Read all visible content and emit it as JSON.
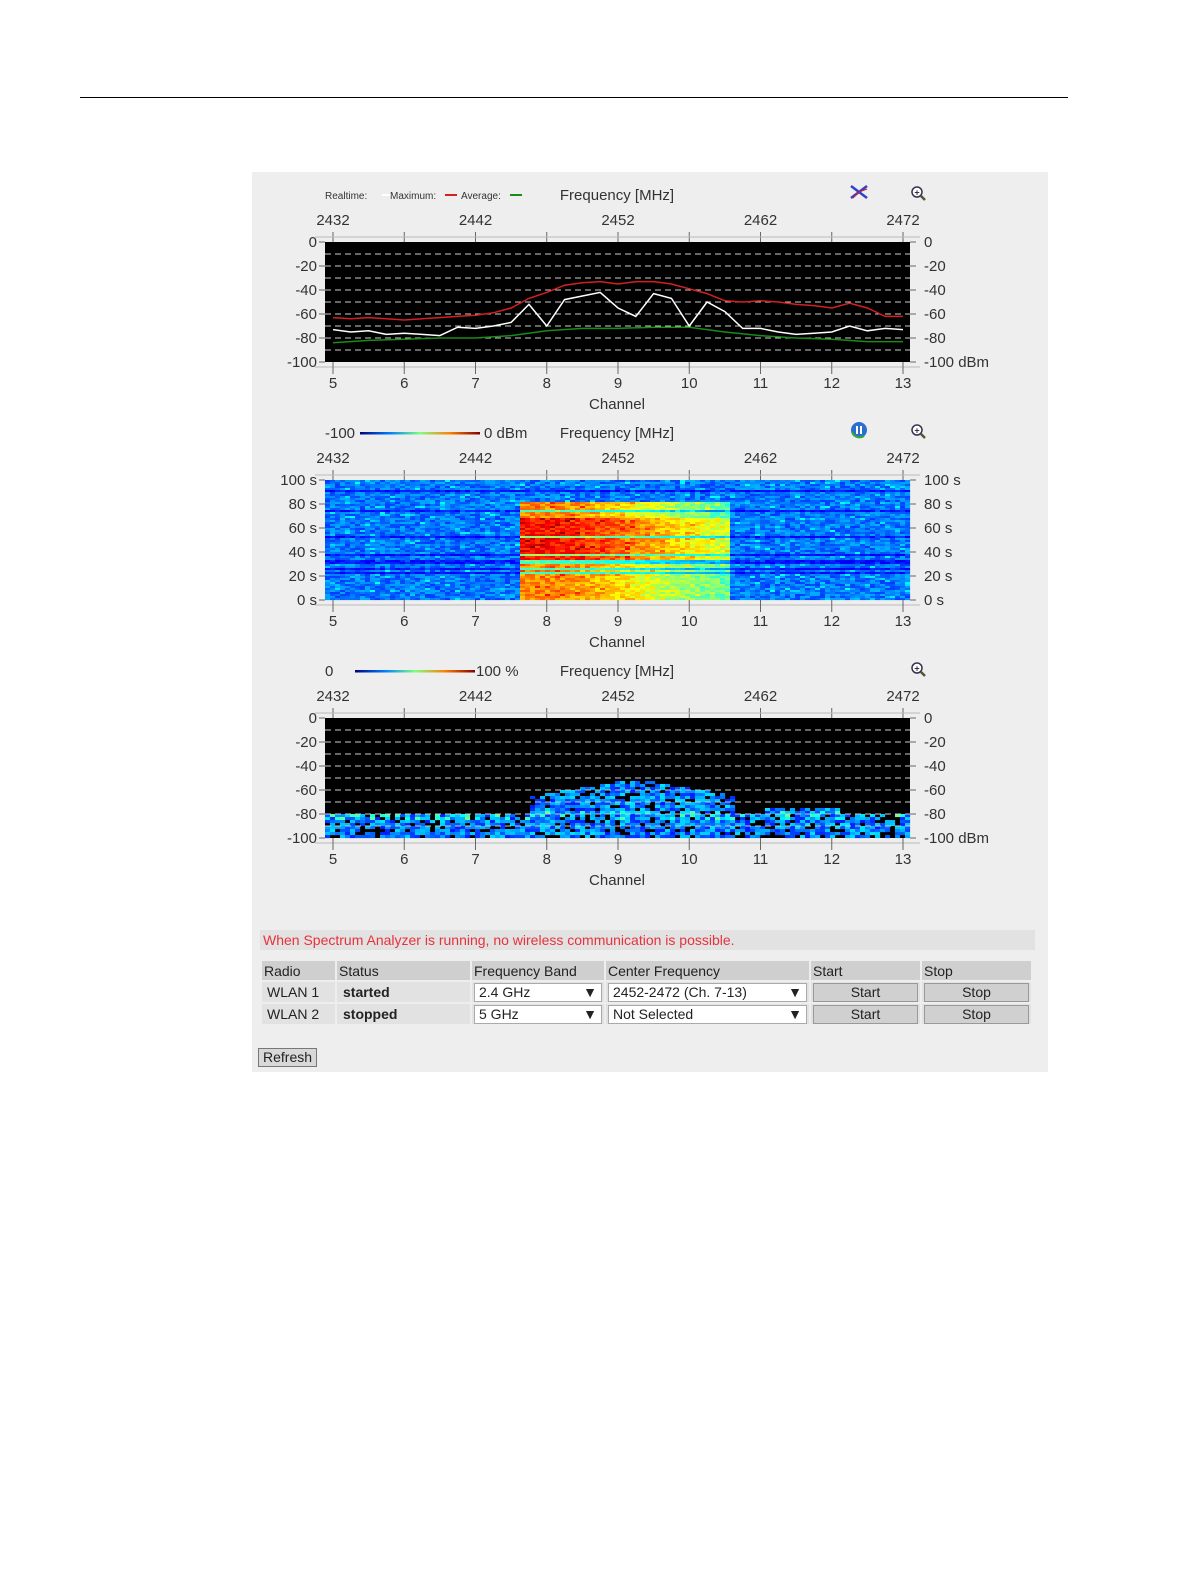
{
  "colors": {
    "max": "#d42020",
    "realtime": "#ffffff",
    "average": "#1a8a1a",
    "warning": "#e8323c",
    "plot_bg": "#000000",
    "panel_bg": "#eeeeee"
  },
  "chart_data": [
    {
      "type": "line",
      "title": "Frequency [MHz]",
      "xlabel": "Channel",
      "x_ticks": [
        "5",
        "6",
        "7",
        "8",
        "9",
        "10",
        "11",
        "12",
        "13"
      ],
      "x2_ticks": [
        "2432",
        "2442",
        "2452",
        "2462",
        "2472"
      ],
      "yticks_left": [
        "0",
        "-20",
        "-40",
        "-60",
        "-80",
        "-100"
      ],
      "yticks_right": [
        "0",
        "-20",
        "-40",
        "-60",
        "-80",
        "-100 dBm"
      ],
      "ylim": [
        -100,
        0
      ],
      "xlim": [
        5,
        13
      ],
      "grid": true,
      "legend": {
        "realtime": "Realtime:",
        "maximum": "Maximum:",
        "average": "Average:",
        "placement": "top-left"
      },
      "icons": [
        "reset-max-icon",
        "zoom-icon"
      ],
      "series": [
        {
          "name": "Realtime",
          "x": [
            5,
            5.25,
            5.5,
            5.75,
            6,
            6.25,
            6.5,
            6.75,
            7,
            7.25,
            7.5,
            7.75,
            8,
            8.25,
            8.5,
            8.75,
            9,
            9.25,
            9.5,
            9.75,
            10,
            10.25,
            10.5,
            10.75,
            11,
            11.25,
            11.5,
            11.75,
            12,
            12.25,
            12.5,
            12.75,
            13
          ],
          "values": [
            -73,
            -75,
            -74,
            -77,
            -76,
            -77,
            -78,
            -71,
            -72,
            -70,
            -67,
            -52,
            -70,
            -48,
            -45,
            -42,
            -55,
            -62,
            -43,
            -47,
            -70,
            -50,
            -58,
            -72,
            -72,
            -75,
            -77,
            -76,
            -75,
            -70,
            -74,
            -72,
            -73
          ]
        },
        {
          "name": "Maximum",
          "x": [
            5,
            5.25,
            5.5,
            5.75,
            6,
            6.25,
            6.5,
            6.75,
            7,
            7.25,
            7.5,
            7.75,
            8,
            8.25,
            8.5,
            8.75,
            9,
            9.25,
            9.5,
            9.75,
            10,
            10.25,
            10.5,
            10.75,
            11,
            11.25,
            11.5,
            11.75,
            12,
            12.25,
            12.5,
            12.75,
            13
          ],
          "values": [
            -63,
            -64,
            -63,
            -64,
            -65,
            -64,
            -63,
            -62,
            -61,
            -59,
            -55,
            -47,
            -42,
            -36,
            -34,
            -33,
            -35,
            -33,
            -33,
            -35,
            -39,
            -43,
            -49,
            -50,
            -49,
            -50,
            -52,
            -53,
            -55,
            -51,
            -55,
            -62,
            -62
          ]
        },
        {
          "name": "Average",
          "x": [
            5,
            5.5,
            6,
            6.5,
            7,
            7.5,
            8,
            8.5,
            9,
            9.5,
            10,
            10.5,
            11,
            11.5,
            12,
            12.5,
            13
          ],
          "values": [
            -84,
            -82,
            -81,
            -80,
            -80,
            -78,
            -74,
            -72,
            -72,
            -71,
            -71,
            -75,
            -78,
            -80,
            -81,
            -83,
            -83
          ]
        }
      ]
    },
    {
      "type": "heatmap",
      "title": "Frequency [MHz]",
      "xlabel": "Channel",
      "x_ticks": [
        "5",
        "6",
        "7",
        "8",
        "9",
        "10",
        "11",
        "12",
        "13"
      ],
      "x2_ticks": [
        "2432",
        "2442",
        "2452",
        "2462",
        "2472"
      ],
      "yticks_left": [
        "100 s",
        "80 s",
        "60 s",
        "40 s",
        "20 s",
        "0 s"
      ],
      "yticks_right": [
        "100 s",
        "80 s",
        "60 s",
        "40 s",
        "20 s",
        "0 s"
      ],
      "scale": {
        "min": "-100",
        "max": "0 dBm"
      },
      "ylim": [
        0,
        100
      ],
      "xlim": [
        5,
        13
      ],
      "icons": [
        "pause-icon",
        "zoom-icon"
      ]
    },
    {
      "type": "heatmap",
      "title": "Frequency [MHz]",
      "xlabel": "Channel",
      "x_ticks": [
        "5",
        "6",
        "7",
        "8",
        "9",
        "10",
        "11",
        "12",
        "13"
      ],
      "x2_ticks": [
        "2432",
        "2442",
        "2452",
        "2462",
        "2472"
      ],
      "yticks_left": [
        "0",
        "-20",
        "-40",
        "-60",
        "-80",
        "-100"
      ],
      "yticks_right": [
        "0",
        "-20",
        "-40",
        "-60",
        "-80",
        "-100 dBm"
      ],
      "scale": {
        "min": "0",
        "max": "100 %"
      },
      "ylim": [
        -100,
        0
      ],
      "xlim": [
        5,
        13
      ],
      "icons": [
        "zoom-icon"
      ]
    }
  ],
  "warning": "When Spectrum Analyzer is running, no wireless communication is possible.",
  "table": {
    "headers": [
      "Radio",
      "Status",
      "Frequency Band",
      "Center Frequency",
      "Start",
      "Stop"
    ],
    "rows": [
      {
        "radio": "WLAN 1",
        "status": "started",
        "band": "2.4 GHz",
        "center": "2452-2472 (Ch. 7-13)",
        "start": "Start",
        "stop": "Stop"
      },
      {
        "radio": "WLAN 2",
        "status": "stopped",
        "band": "5 GHz",
        "center": "Not Selected",
        "start": "Start",
        "stop": "Stop"
      }
    ]
  },
  "refresh_label": "Refresh"
}
